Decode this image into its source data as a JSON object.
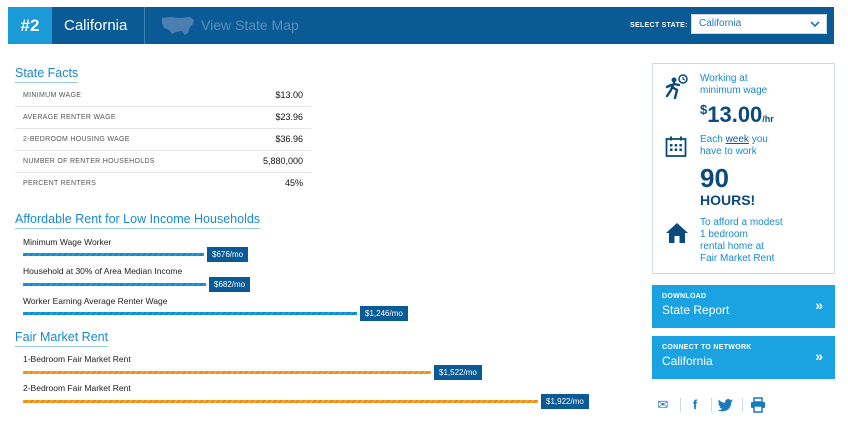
{
  "header": {
    "rank": "#2",
    "state": "California",
    "map_link": "View State Map",
    "select_label": "SELECT STATE:",
    "select_value": "California"
  },
  "facts": {
    "title": "State Facts",
    "rows": [
      {
        "label": "MINIMUM WAGE",
        "value": "$13.00"
      },
      {
        "label": "AVERAGE RENTER WAGE",
        "value": "$23.96"
      },
      {
        "label": "2-BEDROOM HOUSING WAGE",
        "value": "$36.96"
      },
      {
        "label": "NUMBER OF RENTER HOUSEHOLDS",
        "value": "5,880,000"
      },
      {
        "label": "PERCENT RENTERS",
        "value": "45%"
      }
    ]
  },
  "affordable": {
    "title": "Affordable Rent for Low Income Households",
    "items": [
      {
        "label": "Minimum Wage Worker",
        "tag": "$676/mo",
        "amount": 676
      },
      {
        "label": "Household at 30% of Area Median Income",
        "tag": "$682/mo",
        "amount": 682
      },
      {
        "label": "Worker Earning Average Renter Wage",
        "tag": "$1,246/mo",
        "amount": 1246
      }
    ]
  },
  "fmr": {
    "title": "Fair Market Rent",
    "items": [
      {
        "label": "1-Bedroom Fair Market Rent",
        "tag": "$1,522/mo",
        "amount": 1522
      },
      {
        "label": "2-Bedroom Fair Market Rent",
        "tag": "$1,922/mo",
        "amount": 1922
      }
    ]
  },
  "info": {
    "working_line1": "Working at",
    "working_line2": "minimum wage",
    "wage_dollar": "$",
    "wage_value": "13.00",
    "wage_unit": "/hr",
    "week_line1_pre": "Each ",
    "week_link": "week",
    "week_line1_post": " you",
    "week_line2": "have to work",
    "hours_value": "90",
    "hours_label": "HOURS!",
    "afford_line1": "To afford a modest",
    "afford_line2": "1 bedroom",
    "afford_line3": "rental home at",
    "afford_line4": "Fair Market Rent"
  },
  "cta": {
    "download_small": "DOWNLOAD",
    "download_large": "State Report",
    "connect_small": "CONNECT TO NETWORK",
    "connect_large": "California",
    "arrow": "»"
  },
  "social": {
    "email": "✉",
    "facebook": "f",
    "print": "⎙"
  },
  "colors": {
    "header_bg": "#0a5a96",
    "rank_bg": "#1a9ad6",
    "accent": "#1aa3e0",
    "bar_blue": "#1aa3e0",
    "bar_orange": "#f7a832",
    "tag_bg": "#0a5a96"
  }
}
